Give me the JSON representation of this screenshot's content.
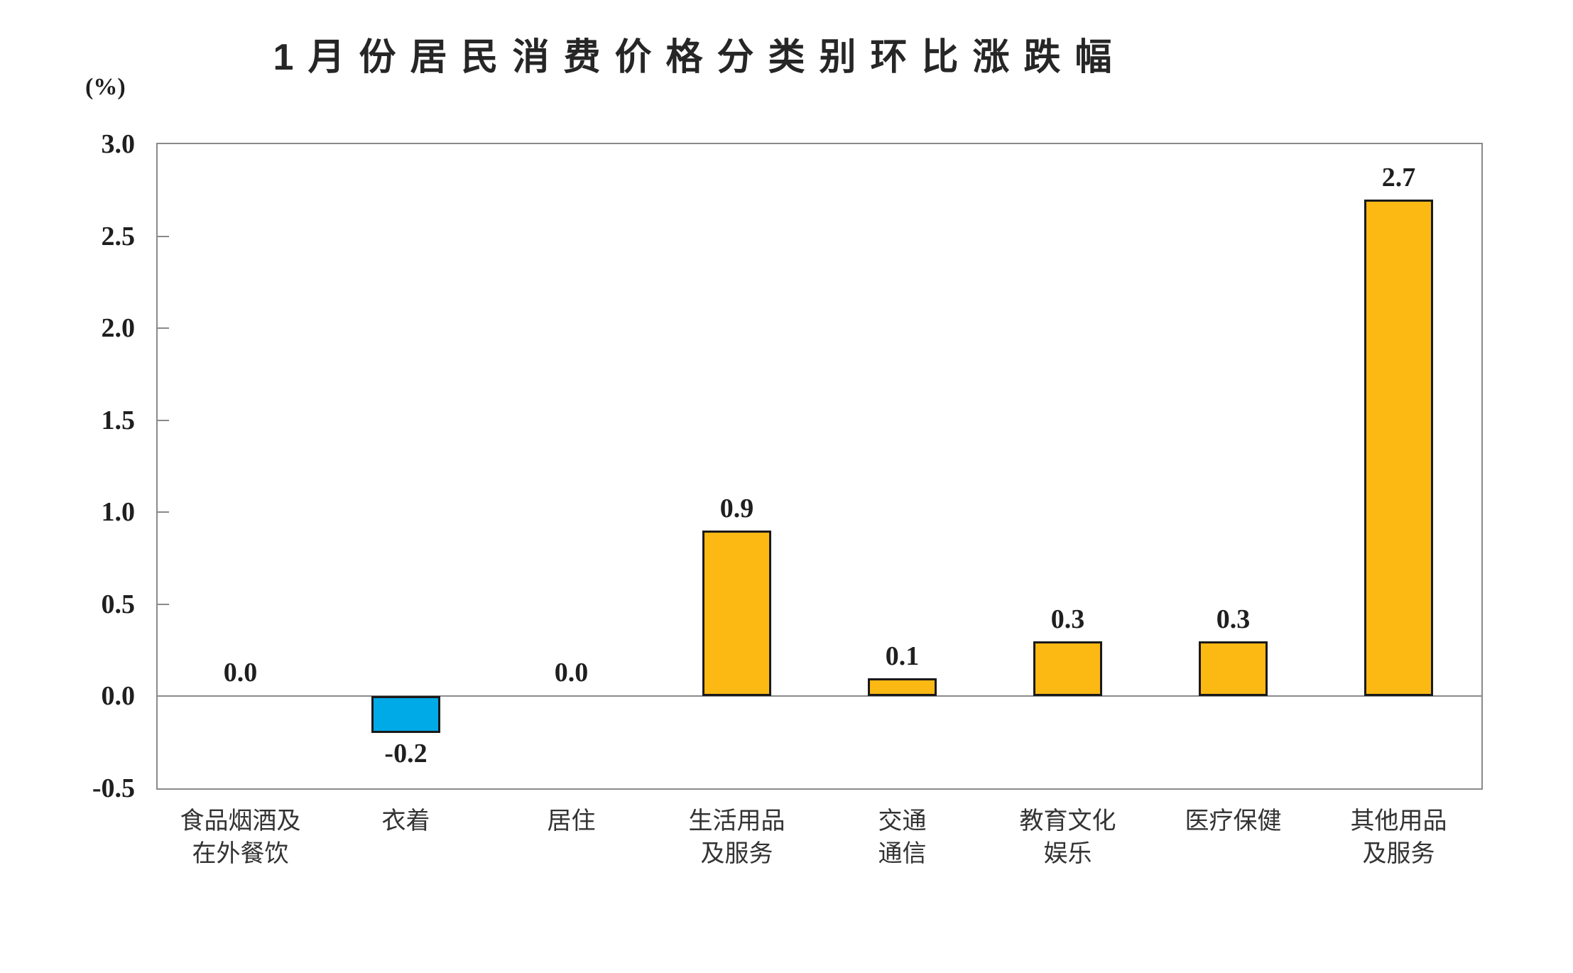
{
  "chart_data": {
    "type": "bar",
    "title": "1月份居民消费价格分类别环比涨跌幅",
    "unit_label": "(%)",
    "categories": [
      "食品烟酒及\n在外餐饮",
      "衣着",
      "居住",
      "生活用品\n及服务",
      "交通\n通信",
      "教育文化\n娱乐",
      "医疗保健",
      "其他用品\n及服务"
    ],
    "values": [
      0.0,
      -0.2,
      0.0,
      0.9,
      0.1,
      0.3,
      0.3,
      2.7
    ],
    "value_labels": [
      "0.0",
      "-0.2",
      "0.0",
      "0.9",
      "0.1",
      "0.3",
      "0.3",
      "2.7"
    ],
    "ylim": [
      -0.5,
      3.0
    ],
    "ytick_step": 0.5,
    "ytick_labels": [
      "3.0",
      "2.5",
      "2.0",
      "1.5",
      "1.0",
      "0.5",
      "0.0",
      "-0.5"
    ],
    "grid": "off",
    "legend": "none",
    "colors": {
      "positive_bar": "#FCB813",
      "negative_bar": "#00AAE6",
      "bar_border": "#1A1A1A",
      "axis": "#8A8A8A",
      "text": "#1F1F1F"
    }
  }
}
